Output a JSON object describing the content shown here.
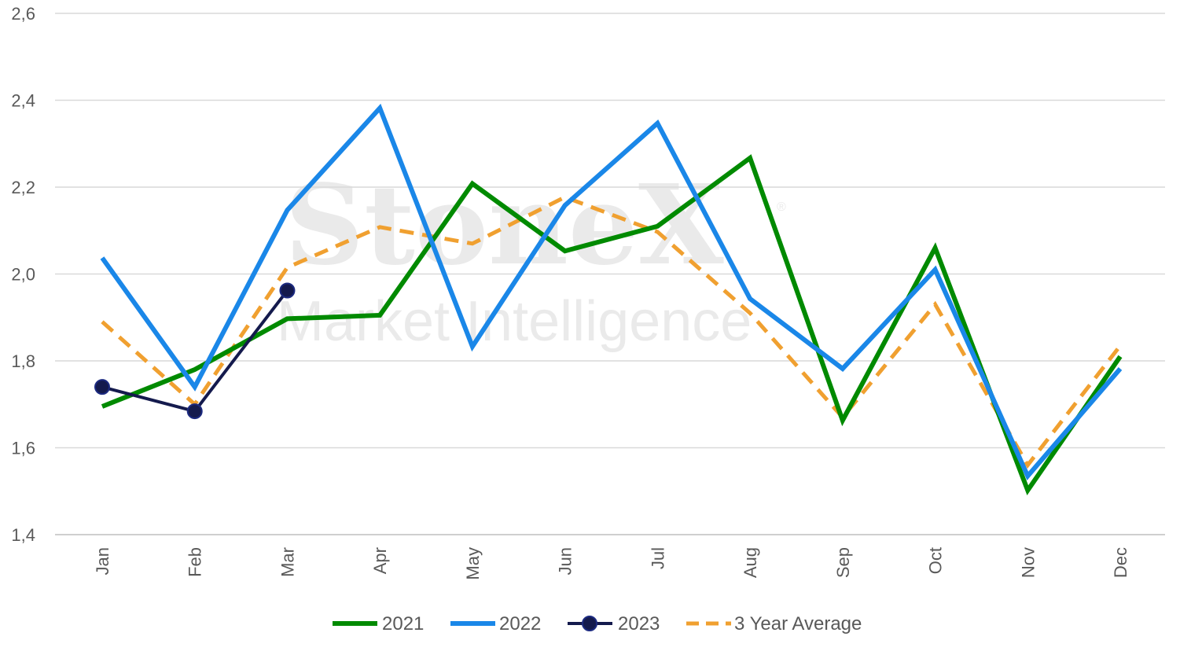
{
  "chart_data": {
    "type": "line",
    "title": "",
    "xlabel": "",
    "ylabel": "",
    "categories": [
      "Jan",
      "Feb",
      "Mar",
      "Apr",
      "May",
      "Jun",
      "Jul",
      "Aug",
      "Sep",
      "Oct",
      "Nov",
      "Dec"
    ],
    "yticks": [
      "1,4",
      "1,6",
      "1,8",
      "2,0",
      "2,2",
      "2,4",
      "2,6"
    ],
    "ylim": [
      1.4,
      2.6
    ],
    "grid": "horizontal",
    "legend_position": "bottom",
    "series": [
      {
        "name": "2021",
        "color": "#008a00",
        "style": "solid",
        "values": [
          1.695,
          1.78,
          1.897,
          1.905,
          2.208,
          2.053,
          2.11,
          2.267,
          1.663,
          2.06,
          1.502,
          1.81
        ]
      },
      {
        "name": "2022",
        "color": "#1a87e8",
        "style": "solid",
        "values": [
          2.037,
          1.74,
          2.147,
          2.382,
          1.833,
          2.158,
          2.347,
          1.943,
          1.782,
          2.01,
          1.535,
          1.782
        ]
      },
      {
        "name": "2023",
        "color": "#141a4d",
        "style": "solid-markers",
        "values": [
          1.74,
          1.684,
          1.962,
          null,
          null,
          null,
          null,
          null,
          null,
          null,
          null,
          null
        ]
      },
      {
        "name": "3 Year Average",
        "color": "#f0a030",
        "style": "dashed",
        "values": [
          1.89,
          1.7,
          2.015,
          2.108,
          2.07,
          2.177,
          2.097,
          1.91,
          1.67,
          1.93,
          1.56,
          1.835
        ]
      }
    ]
  },
  "watermark": {
    "brand": "StoneX",
    "subtitle": "Market Intelligence",
    "mark": "®"
  }
}
